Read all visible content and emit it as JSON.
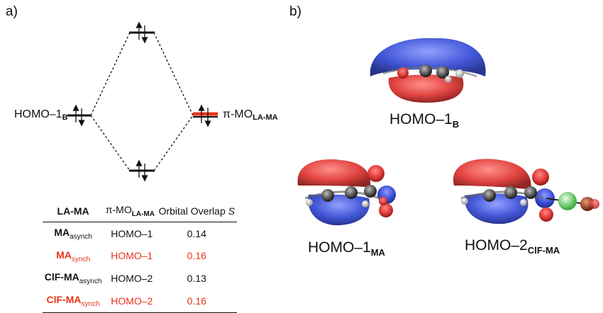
{
  "panel_a": {
    "label": "a)",
    "level_left": {
      "label_main": "HOMO–1",
      "label_sub": "B"
    },
    "level_right": {
      "label_prefix": "π-MO",
      "label_sub": "LA-MA"
    },
    "colors": {
      "red_level": "#e8341c",
      "black_level": "#111111"
    }
  },
  "table": {
    "headers": [
      {
        "main": "LA-MA",
        "sub": ""
      },
      {
        "main": "π-MO",
        "sub": "LA-MA"
      },
      {
        "main": "Orbital Overlap ",
        "sub": "",
        "italic": "S"
      }
    ],
    "rows": [
      {
        "la_ma": "MA",
        "la_ma_sub": "asynch",
        "pi_mo": "HOMO–1",
        "overlap": "0.14",
        "highlight": false
      },
      {
        "la_ma": "MA",
        "la_ma_sub": "synch",
        "pi_mo": "HOMO–1",
        "overlap": "0.16",
        "highlight": true
      },
      {
        "la_ma": "ClF-MA",
        "la_ma_sub": "asynch",
        "pi_mo": "HOMO–2",
        "overlap": "0.13",
        "highlight": false
      },
      {
        "la_ma": "ClF-MA",
        "la_ma_sub": "synch",
        "pi_mo": "HOMO–2",
        "overlap": "0.16",
        "highlight": true
      }
    ],
    "highlight_color": "#e8341c"
  },
  "panel_b": {
    "label": "b)",
    "captions": [
      {
        "main": "HOMO–1",
        "sub": "B"
      },
      {
        "main": "HOMO–1",
        "sub": "MA"
      },
      {
        "main": "HOMO–2",
        "sub": "ClF-MA"
      }
    ],
    "lobe_colors": {
      "blue": "#3a4fd6",
      "red": "#e03a36",
      "atom_gray": "#444444",
      "hydrogen": "#f2f2f2",
      "chlorine": "#8fe88f",
      "fluorine": "#c04a2a"
    }
  }
}
